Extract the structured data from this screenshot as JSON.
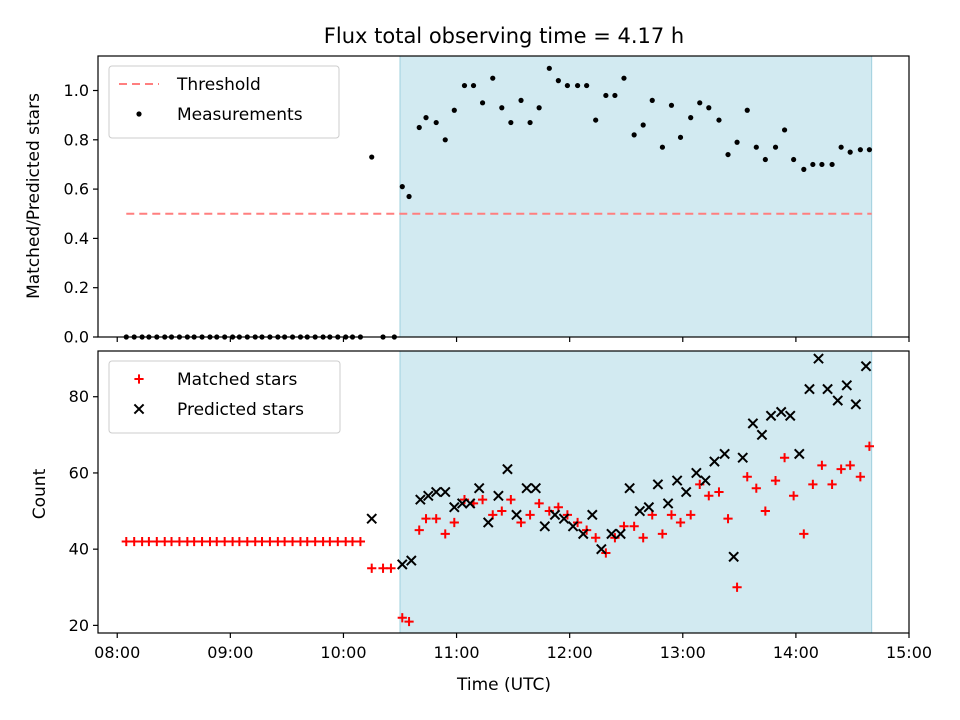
{
  "chart_data": {
    "type": "scatter",
    "title": "Flux total observing time = 4.17 h",
    "xlabel": "Time (UTC)",
    "x_unit": "hours UTC",
    "xlim": [
      7.83,
      15.0
    ],
    "xticks": [
      8,
      9,
      10,
      11,
      12,
      13,
      14,
      15
    ],
    "xtick_labels": [
      "08:00",
      "09:00",
      "10:00",
      "11:00",
      "12:00",
      "13:00",
      "14:00",
      "15:00"
    ],
    "shaded_interval": {
      "start": 10.5,
      "end": 14.67,
      "color": "#add8e6"
    },
    "panels": [
      {
        "ylabel": "Matched/Predicted stars",
        "ylim": [
          0,
          1.14
        ],
        "yticks": [
          0.0,
          0.2,
          0.4,
          0.6,
          0.8,
          1.0
        ],
        "ytick_labels": [
          "0.0",
          "0.2",
          "0.4",
          "0.6",
          "0.8",
          "1.0"
        ],
        "legend_position": "top-left",
        "threshold": {
          "label": "Threshold",
          "y": 0.5,
          "x_range": [
            8.08,
            14.67
          ],
          "color": "#ff7f7f"
        },
        "series": [
          {
            "name": "Measurements",
            "marker": "dot",
            "color": "#000000",
            "points": [
              [
                8.08,
                0
              ],
              [
                8.15,
                0
              ],
              [
                8.22,
                0
              ],
              [
                8.28,
                0
              ],
              [
                8.35,
                0
              ],
              [
                8.42,
                0
              ],
              [
                8.48,
                0
              ],
              [
                8.55,
                0
              ],
              [
                8.62,
                0
              ],
              [
                8.68,
                0
              ],
              [
                8.75,
                0
              ],
              [
                8.82,
                0
              ],
              [
                8.88,
                0
              ],
              [
                8.95,
                0
              ],
              [
                9.02,
                0
              ],
              [
                9.08,
                0
              ],
              [
                9.15,
                0
              ],
              [
                9.22,
                0
              ],
              [
                9.28,
                0
              ],
              [
                9.35,
                0
              ],
              [
                9.42,
                0
              ],
              [
                9.48,
                0
              ],
              [
                9.55,
                0
              ],
              [
                9.62,
                0
              ],
              [
                9.68,
                0
              ],
              [
                9.75,
                0
              ],
              [
                9.82,
                0
              ],
              [
                9.88,
                0
              ],
              [
                9.95,
                0
              ],
              [
                10.02,
                0
              ],
              [
                10.08,
                0
              ],
              [
                10.15,
                0
              ],
              [
                10.25,
                0.73
              ],
              [
                10.35,
                0
              ],
              [
                10.45,
                0
              ],
              [
                10.52,
                0.61
              ],
              [
                10.58,
                0.57
              ],
              [
                10.67,
                0.85
              ],
              [
                10.73,
                0.89
              ],
              [
                10.82,
                0.87
              ],
              [
                10.9,
                0.8
              ],
              [
                10.98,
                0.92
              ],
              [
                11.07,
                1.02
              ],
              [
                11.15,
                1.02
              ],
              [
                11.23,
                0.95
              ],
              [
                11.32,
                1.05
              ],
              [
                11.4,
                0.93
              ],
              [
                11.48,
                0.87
              ],
              [
                11.57,
                0.96
              ],
              [
                11.65,
                0.87
              ],
              [
                11.73,
                0.93
              ],
              [
                11.82,
                1.09
              ],
              [
                11.9,
                1.04
              ],
              [
                11.98,
                1.02
              ],
              [
                12.07,
                1.02
              ],
              [
                12.15,
                1.02
              ],
              [
                12.23,
                0.88
              ],
              [
                12.32,
                0.98
              ],
              [
                12.4,
                0.98
              ],
              [
                12.48,
                1.05
              ],
              [
                12.57,
                0.82
              ],
              [
                12.65,
                0.86
              ],
              [
                12.73,
                0.96
              ],
              [
                12.82,
                0.77
              ],
              [
                12.9,
                0.94
              ],
              [
                12.98,
                0.81
              ],
              [
                13.07,
                0.89
              ],
              [
                13.15,
                0.95
              ],
              [
                13.23,
                0.93
              ],
              [
                13.32,
                0.88
              ],
              [
                13.4,
                0.74
              ],
              [
                13.48,
                0.79
              ],
              [
                13.57,
                0.92
              ],
              [
                13.65,
                0.77
              ],
              [
                13.73,
                0.72
              ],
              [
                13.82,
                0.77
              ],
              [
                13.9,
                0.84
              ],
              [
                13.98,
                0.72
              ],
              [
                14.07,
                0.68
              ],
              [
                14.15,
                0.7
              ],
              [
                14.23,
                0.7
              ],
              [
                14.32,
                0.7
              ],
              [
                14.4,
                0.77
              ],
              [
                14.48,
                0.75
              ],
              [
                14.57,
                0.76
              ],
              [
                14.65,
                0.76
              ]
            ]
          }
        ]
      },
      {
        "ylabel": "Count",
        "ylim": [
          18,
          92
        ],
        "yticks": [
          20,
          40,
          60,
          80
        ],
        "ytick_labels": [
          "20",
          "40",
          "60",
          "80"
        ],
        "legend_position": "top-left",
        "series": [
          {
            "name": "Matched stars",
            "marker": "plus",
            "color": "#ff0000",
            "points": [
              [
                8.08,
                42
              ],
              [
                8.15,
                42
              ],
              [
                8.22,
                42
              ],
              [
                8.28,
                42
              ],
              [
                8.35,
                42
              ],
              [
                8.42,
                42
              ],
              [
                8.48,
                42
              ],
              [
                8.55,
                42
              ],
              [
                8.62,
                42
              ],
              [
                8.68,
                42
              ],
              [
                8.75,
                42
              ],
              [
                8.82,
                42
              ],
              [
                8.88,
                42
              ],
              [
                8.95,
                42
              ],
              [
                9.02,
                42
              ],
              [
                9.08,
                42
              ],
              [
                9.15,
                42
              ],
              [
                9.22,
                42
              ],
              [
                9.28,
                42
              ],
              [
                9.35,
                42
              ],
              [
                9.42,
                42
              ],
              [
                9.48,
                42
              ],
              [
                9.55,
                42
              ],
              [
                9.62,
                42
              ],
              [
                9.68,
                42
              ],
              [
                9.75,
                42
              ],
              [
                9.82,
                42
              ],
              [
                9.88,
                42
              ],
              [
                9.95,
                42
              ],
              [
                10.02,
                42
              ],
              [
                10.08,
                42
              ],
              [
                10.15,
                42
              ],
              [
                10.25,
                35
              ],
              [
                10.35,
                35
              ],
              [
                10.42,
                35
              ],
              [
                10.52,
                22
              ],
              [
                10.58,
                21
              ],
              [
                10.67,
                45
              ],
              [
                10.73,
                48
              ],
              [
                10.82,
                48
              ],
              [
                10.9,
                44
              ],
              [
                10.98,
                47
              ],
              [
                11.07,
                53
              ],
              [
                11.15,
                52
              ],
              [
                11.23,
                53
              ],
              [
                11.32,
                49
              ],
              [
                11.4,
                50
              ],
              [
                11.48,
                53
              ],
              [
                11.57,
                47
              ],
              [
                11.65,
                49
              ],
              [
                11.73,
                52
              ],
              [
                11.82,
                50
              ],
              [
                11.9,
                51
              ],
              [
                11.98,
                49
              ],
              [
                12.07,
                47
              ],
              [
                12.15,
                45
              ],
              [
                12.23,
                43
              ],
              [
                12.32,
                39
              ],
              [
                12.4,
                43
              ],
              [
                12.48,
                46
              ],
              [
                12.57,
                46
              ],
              [
                12.65,
                43
              ],
              [
                12.73,
                49
              ],
              [
                12.82,
                44
              ],
              [
                12.9,
                49
              ],
              [
                12.98,
                47
              ],
              [
                13.07,
                49
              ],
              [
                13.15,
                57
              ],
              [
                13.23,
                54
              ],
              [
                13.32,
                55
              ],
              [
                13.4,
                48
              ],
              [
                13.48,
                30
              ],
              [
                13.57,
                59
              ],
              [
                13.65,
                56
              ],
              [
                13.73,
                50
              ],
              [
                13.82,
                58
              ],
              [
                13.9,
                64
              ],
              [
                13.98,
                54
              ],
              [
                14.07,
                44
              ],
              [
                14.15,
                57
              ],
              [
                14.23,
                62
              ],
              [
                14.32,
                57
              ],
              [
                14.4,
                61
              ],
              [
                14.48,
                62
              ],
              [
                14.57,
                59
              ],
              [
                14.65,
                67
              ]
            ]
          },
          {
            "name": "Predicted stars",
            "marker": "x",
            "color": "#000000",
            "points": [
              [
                10.25,
                48
              ],
              [
                10.52,
                36
              ],
              [
                10.6,
                37
              ],
              [
                10.68,
                53
              ],
              [
                10.75,
                54
              ],
              [
                10.82,
                55
              ],
              [
                10.9,
                55
              ],
              [
                10.98,
                51
              ],
              [
                11.05,
                52
              ],
              [
                11.12,
                52
              ],
              [
                11.2,
                56
              ],
              [
                11.28,
                47
              ],
              [
                11.37,
                54
              ],
              [
                11.45,
                61
              ],
              [
                11.53,
                49
              ],
              [
                11.62,
                56
              ],
              [
                11.7,
                56
              ],
              [
                11.78,
                46
              ],
              [
                11.87,
                49
              ],
              [
                11.95,
                48
              ],
              [
                12.03,
                46
              ],
              [
                12.12,
                44
              ],
              [
                12.2,
                49
              ],
              [
                12.28,
                40
              ],
              [
                12.37,
                44
              ],
              [
                12.45,
                44
              ],
              [
                12.53,
                56
              ],
              [
                12.62,
                50
              ],
              [
                12.7,
                51
              ],
              [
                12.78,
                57
              ],
              [
                12.87,
                52
              ],
              [
                12.95,
                58
              ],
              [
                13.03,
                55
              ],
              [
                13.12,
                60
              ],
              [
                13.2,
                58
              ],
              [
                13.28,
                63
              ],
              [
                13.37,
                65
              ],
              [
                13.45,
                38
              ],
              [
                13.53,
                64
              ],
              [
                13.62,
                73
              ],
              [
                13.7,
                70
              ],
              [
                13.78,
                75
              ],
              [
                13.87,
                76
              ],
              [
                13.95,
                75
              ],
              [
                14.03,
                65
              ],
              [
                14.12,
                82
              ],
              [
                14.2,
                90
              ],
              [
                14.28,
                82
              ],
              [
                14.37,
                79
              ],
              [
                14.45,
                83
              ],
              [
                14.53,
                78
              ],
              [
                14.62,
                88
              ]
            ]
          }
        ]
      }
    ]
  }
}
